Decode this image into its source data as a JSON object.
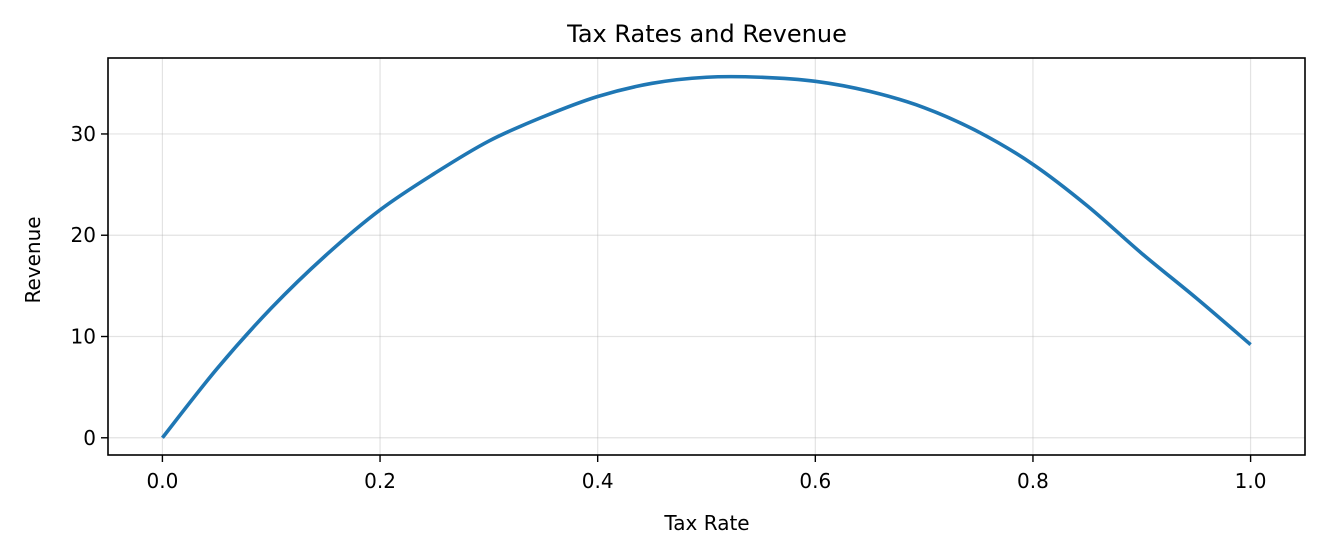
{
  "chart_data": {
    "type": "line",
    "title": "Tax Rates and Revenue",
    "xlabel": "Tax Rate",
    "ylabel": "Revenue",
    "xlim": [
      -0.05,
      1.05
    ],
    "ylim": [
      -1.7,
      37.5
    ],
    "grid": true,
    "xticks": [
      0.0,
      0.2,
      0.4,
      0.6,
      0.8,
      1.0
    ],
    "xtick_labels": [
      "0.0",
      "0.2",
      "0.4",
      "0.6",
      "0.8",
      "1.0"
    ],
    "yticks": [
      0,
      10,
      20,
      30
    ],
    "ytick_labels": [
      "0",
      "10",
      "20",
      "30"
    ],
    "series": [
      {
        "color": "#1f77b4",
        "x": [
          0.0,
          0.05,
          0.1,
          0.15,
          0.2,
          0.25,
          0.3,
          0.35,
          0.4,
          0.45,
          0.5,
          0.55,
          0.6,
          0.65,
          0.7,
          0.75,
          0.8,
          0.85,
          0.9,
          0.95,
          1.0
        ],
        "y": [
          0.0,
          6.8,
          12.8,
          18.0,
          22.5,
          26.1,
          29.3,
          31.7,
          33.7,
          35.0,
          35.6,
          35.6,
          35.2,
          34.2,
          32.6,
          30.2,
          27.0,
          22.9,
          18.2,
          13.8,
          9.2
        ]
      }
    ]
  }
}
